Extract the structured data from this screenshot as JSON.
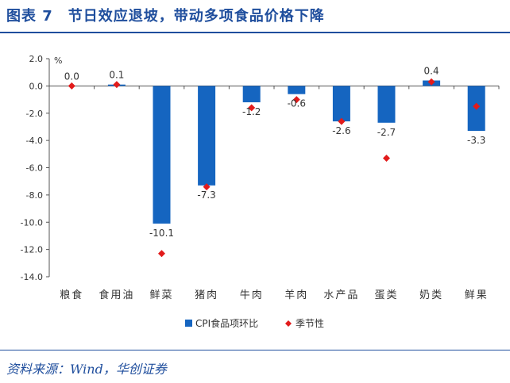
{
  "figure": {
    "title": "图表 7　节日效应退坡，带动多项食品价格下降",
    "source": "资料来源：Wind，华创证券"
  },
  "colors": {
    "title": "#1f4e9d",
    "bar": "#1565c0",
    "marker": "#e21b1b",
    "axis": "#555555",
    "text": "#333333"
  },
  "chart_data": {
    "type": "bar",
    "ylabel": "%",
    "ylim": [
      -14.0,
      2.0
    ],
    "yticks": [
      "2.0",
      "0.0",
      "-2.0",
      "-4.0",
      "-6.0",
      "-8.0",
      "-10.0",
      "-12.0",
      "-14.0"
    ],
    "categories": [
      "粮食",
      "食用油",
      "鲜菜",
      "猪肉",
      "牛肉",
      "羊肉",
      "水产品",
      "蛋类",
      "奶类",
      "鲜果"
    ],
    "series": [
      {
        "name": "CPI食品项环比",
        "type": "bar",
        "values": [
          0.0,
          0.1,
          -10.1,
          -7.3,
          -1.2,
          -0.6,
          -2.6,
          -2.7,
          0.4,
          -3.3
        ],
        "labels": [
          "0.0",
          "0.1",
          "-10.1",
          "-7.3",
          "-1.2",
          "-0.6",
          "-2.6",
          "-2.7",
          "0.4",
          "-3.3"
        ]
      },
      {
        "name": "季节性",
        "type": "marker",
        "values": [
          0.0,
          0.1,
          -12.3,
          -7.4,
          -1.6,
          -1.0,
          -2.6,
          -5.3,
          0.3,
          -1.5
        ]
      }
    ],
    "legend": "bottom-center",
    "grid": false
  }
}
